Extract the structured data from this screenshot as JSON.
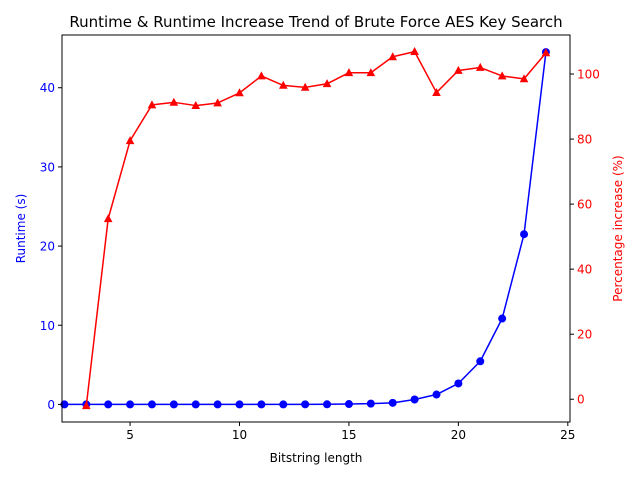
{
  "chart_data": {
    "type": "line",
    "title": "Runtime & Runtime Increase Trend of Brute Force AES Key Search",
    "xlabel": "Bitstring length",
    "ylabel_left": "Runtime (s)",
    "ylabel_right": "Percentage increase (%)",
    "x_ticks": [
      5,
      10,
      15,
      20,
      25
    ],
    "y_left_ticks": [
      0,
      10,
      20,
      30,
      40
    ],
    "y_right_ticks": [
      0,
      20,
      40,
      60,
      80,
      100
    ],
    "xlim": [
      1.89,
      25.1
    ],
    "ylim_left": [
      -2.22,
      46.66
    ],
    "ylim_right": [
      -7.0,
      112.0
    ],
    "grid": false,
    "colors": {
      "left": "#0000ff",
      "right": "#ff0000",
      "axes": "#000000"
    },
    "series": [
      {
        "axis": "left",
        "marker": "circle",
        "x": [
          2,
          3,
          4,
          5,
          6,
          7,
          8,
          9,
          10,
          11,
          12,
          13,
          14,
          15,
          16,
          17,
          18,
          19,
          20,
          21,
          22,
          23,
          24
        ],
        "values": [
          0.0,
          0.0,
          0.0,
          0.0,
          0.0,
          0.0,
          0.0,
          0.0,
          0.0,
          0.0,
          0.0,
          0.01,
          0.02,
          0.05,
          0.1,
          0.2,
          0.62,
          1.25,
          2.65,
          5.45,
          10.85,
          21.5,
          44.5
        ]
      },
      {
        "axis": "right",
        "marker": "triangle",
        "x": [
          3,
          4,
          5,
          6,
          7,
          8,
          9,
          10,
          11,
          12,
          13,
          14,
          15,
          16,
          17,
          18,
          19,
          20,
          21,
          22,
          23,
          24
        ],
        "values": [
          -2.0,
          55.5,
          79.5,
          90.5,
          91.3,
          90.3,
          91.1,
          94.2,
          99.4,
          96.5,
          95.9,
          97.0,
          100.4,
          100.4,
          105.3,
          106.9,
          94.3,
          101.1,
          102.0,
          99.4,
          98.5,
          106.5
        ]
      }
    ]
  }
}
